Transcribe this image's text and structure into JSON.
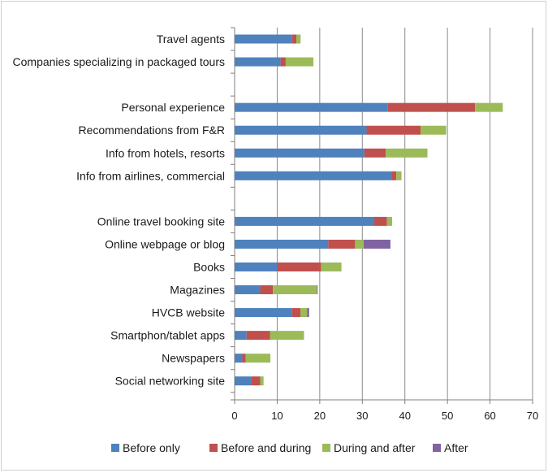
{
  "chart_data": {
    "type": "bar",
    "orientation": "horizontal",
    "stacked": true,
    "title": "",
    "xlabel": "",
    "ylabel": "",
    "xlim": [
      0,
      70
    ],
    "xticks": [
      0,
      10,
      20,
      30,
      40,
      50,
      60,
      70
    ],
    "grid": "vertical",
    "legend_position": "bottom",
    "category_groups": [
      [
        "Travel agents",
        "Companies specializing in packaged tours"
      ],
      [
        "Personal experience",
        "Recommendations from F&R",
        "Info from hotels, resorts",
        "Info from airlines, commercial"
      ],
      [
        "Online travel booking site",
        "Online webpage or blog",
        "Books",
        "Magazines",
        "HVCB website",
        "Smartphon/tablet apps",
        "Newspapers",
        "Social networking site"
      ]
    ],
    "categories": [
      "Travel agents",
      "Companies specializing in packaged tours",
      "Personal experience",
      "Recommendations from F&R",
      "Info from hotels, resorts",
      "Info from airlines, commercial",
      "Online travel booking site",
      "Online webpage or blog",
      "Books",
      "Magazines",
      "HVCB website",
      "Smartphon/tablet apps",
      "Newspapers",
      "Social networking site"
    ],
    "series": [
      {
        "name": "Before only",
        "color": "#4f81bd",
        "values": [
          13.5,
          10.8,
          36,
          31,
          30.5,
          37,
          32.8,
          22,
          10,
          6,
          13.5,
          2.8,
          1.8,
          4
        ]
      },
      {
        "name": "Before and during",
        "color": "#c0504d",
        "values": [
          1,
          1.2,
          20.5,
          12.7,
          5,
          1,
          3,
          6.3,
          10.3,
          3,
          2,
          5.5,
          0.8,
          2
        ]
      },
      {
        "name": "During and after",
        "color": "#9bbb59",
        "values": [
          1,
          6.5,
          6.5,
          6,
          9.8,
          1.2,
          1.2,
          2,
          4.8,
          10.3,
          1.5,
          8,
          5.8,
          0.8
        ]
      },
      {
        "name": "After",
        "color": "#8064a2",
        "values": [
          0,
          0,
          0,
          0,
          0,
          0,
          0,
          6.3,
          0,
          0.2,
          0.5,
          0,
          0,
          0
        ]
      }
    ]
  }
}
